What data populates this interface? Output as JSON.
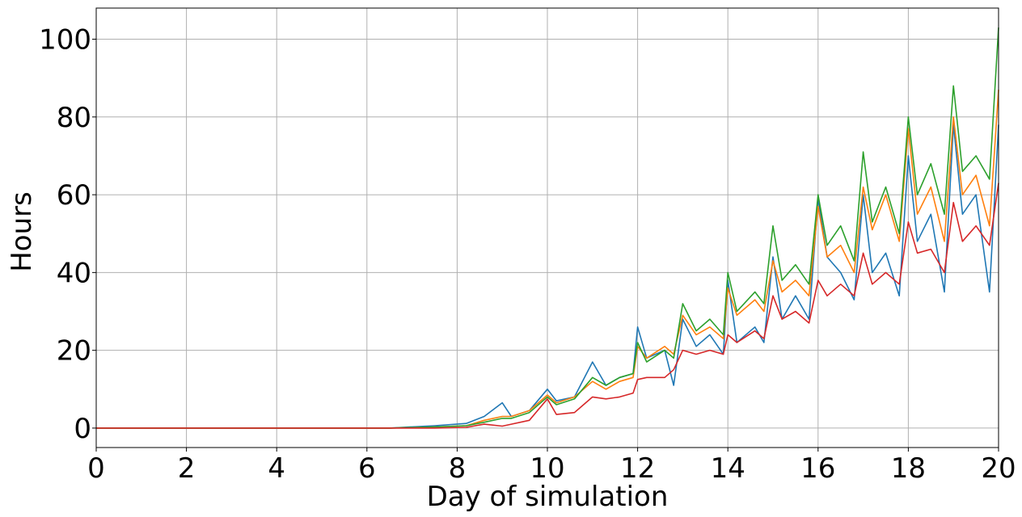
{
  "chart_data": {
    "type": "line",
    "title": "",
    "xlabel": "Day of simulation",
    "ylabel": "Hours",
    "xlim": [
      0,
      20
    ],
    "ylim": [
      -5,
      108
    ],
    "xticks": [
      0,
      2,
      4,
      6,
      8,
      10,
      12,
      14,
      16,
      18,
      20
    ],
    "yticks": [
      0,
      20,
      40,
      60,
      80,
      100
    ],
    "grid": true,
    "legend": "none",
    "series": [
      {
        "color": "#1f77b4",
        "x": [
          0,
          6.5,
          7.5,
          8.2,
          8.6,
          9.0,
          9.2,
          9.6,
          10.0,
          10.2,
          10.6,
          11.0,
          11.3,
          11.6,
          11.9,
          12.0,
          12.2,
          12.6,
          12.8,
          13.0,
          13.3,
          13.6,
          13.9,
          14.0,
          14.2,
          14.6,
          14.8,
          15.0,
          15.2,
          15.5,
          15.8,
          16.0,
          16.2,
          16.5,
          16.8,
          17.0,
          17.2,
          17.5,
          17.8,
          18.0,
          18.2,
          18.5,
          18.8,
          19.0,
          19.2,
          19.5,
          19.8,
          20.0
        ],
        "values": [
          0,
          0,
          0.6,
          1.2,
          3,
          6.5,
          3,
          4.5,
          10,
          7,
          8,
          17,
          11,
          13,
          14,
          26,
          18,
          20,
          11,
          28,
          21,
          24,
          19,
          38,
          22,
          26,
          22,
          44,
          28,
          34,
          28,
          59,
          44,
          40,
          33,
          60,
          40,
          45,
          34,
          70,
          48,
          55,
          35,
          78,
          55,
          60,
          35,
          78
        ]
      },
      {
        "color": "#ff7f0e",
        "x": [
          0,
          6.5,
          7.5,
          8.2,
          8.6,
          9.0,
          9.2,
          9.6,
          10.0,
          10.2,
          10.6,
          11.0,
          11.3,
          11.6,
          11.9,
          12.0,
          12.2,
          12.6,
          12.8,
          13.0,
          13.3,
          13.6,
          13.9,
          14.0,
          14.2,
          14.6,
          14.8,
          15.0,
          15.2,
          15.5,
          15.8,
          16.0,
          16.2,
          16.5,
          16.8,
          17.0,
          17.2,
          17.5,
          17.8,
          18.0,
          18.2,
          18.5,
          18.8,
          19.0,
          19.2,
          19.5,
          19.8,
          20.0
        ],
        "values": [
          0,
          0,
          0.3,
          0.6,
          2,
          3,
          3,
          4.5,
          8.5,
          6.5,
          8,
          12,
          10,
          12,
          13,
          21,
          18,
          21,
          19,
          29,
          24,
          26,
          23,
          36,
          29,
          33,
          30,
          43,
          35,
          38,
          34,
          57,
          44,
          47,
          40,
          62,
          51,
          60,
          48,
          77,
          55,
          62,
          48,
          80,
          60,
          65,
          52,
          87
        ]
      },
      {
        "color": "#2ca02c",
        "x": [
          0,
          6.5,
          7.5,
          8.2,
          8.6,
          9.0,
          9.2,
          9.6,
          10.0,
          10.2,
          10.6,
          11.0,
          11.3,
          11.6,
          11.9,
          12.0,
          12.2,
          12.6,
          12.8,
          13.0,
          13.3,
          13.6,
          13.9,
          14.0,
          14.2,
          14.6,
          14.8,
          15.0,
          15.2,
          15.5,
          15.8,
          16.0,
          16.2,
          16.5,
          16.8,
          17.0,
          17.2,
          17.5,
          17.8,
          18.0,
          18.2,
          18.5,
          18.8,
          19.0,
          19.2,
          19.5,
          19.8,
          20.0
        ],
        "values": [
          0,
          0,
          0.3,
          0.6,
          1.5,
          2.5,
          2.5,
          4,
          8,
          6,
          7.5,
          13,
          11,
          13,
          14,
          22,
          17,
          20,
          18,
          32,
          25,
          28,
          24,
          40,
          30,
          35,
          32,
          52,
          38,
          42,
          37,
          60,
          47,
          52,
          43,
          71,
          53,
          62,
          50,
          80,
          60,
          68,
          55,
          88,
          66,
          70,
          64,
          103
        ]
      },
      {
        "color": "#d62728",
        "x": [
          0,
          6.5,
          7.5,
          8.2,
          8.6,
          9.0,
          9.2,
          9.6,
          10.0,
          10.2,
          10.6,
          11.0,
          11.3,
          11.6,
          11.9,
          12.0,
          12.2,
          12.6,
          12.8,
          13.0,
          13.3,
          13.6,
          13.9,
          14.0,
          14.2,
          14.6,
          14.8,
          15.0,
          15.2,
          15.5,
          15.8,
          16.0,
          16.2,
          16.5,
          16.8,
          17.0,
          17.2,
          17.5,
          17.8,
          18.0,
          18.2,
          18.5,
          18.8,
          19.0,
          19.2,
          19.5,
          19.8,
          20.0
        ],
        "values": [
          0,
          0,
          0,
          0.2,
          1,
          0.5,
          1,
          2,
          7.5,
          3.5,
          4,
          8,
          7.5,
          8,
          9,
          12.5,
          13,
          13,
          15,
          20,
          19,
          20,
          19,
          24,
          22,
          25,
          23,
          34,
          28,
          30,
          27,
          38,
          34,
          37,
          34,
          45,
          37,
          40,
          37,
          53,
          45,
          46,
          40,
          58,
          48,
          52,
          47,
          63
        ]
      }
    ]
  }
}
